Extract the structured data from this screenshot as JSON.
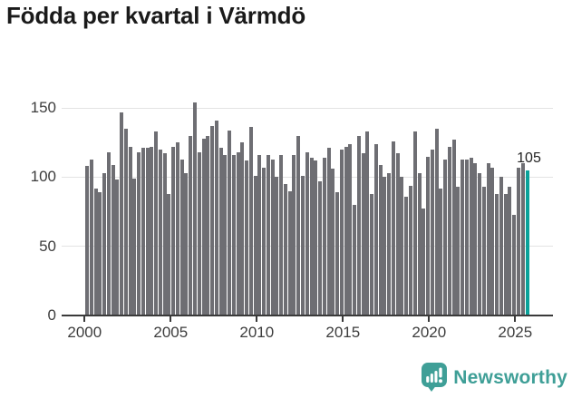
{
  "title": "Födda per kvartal i Värmdö",
  "footer": {
    "brand": "Newsworthy"
  },
  "colors": {
    "bar": "#6e6e73",
    "highlight": "#0aa29a",
    "grid": "#e3e3e3",
    "axis": "#3a3a3a",
    "tick_text": "#3d3d3d",
    "title_text": "#1a1a1a",
    "logo": "#3f9f97"
  },
  "chart_data": {
    "type": "bar",
    "title": "Födda per kvartal i Värmdö",
    "xlabel": "",
    "ylabel": "",
    "ylim": [
      0,
      150
    ],
    "grid": true,
    "y_ticks": [
      0,
      50,
      100,
      150
    ],
    "x_ticks": [
      2000,
      2005,
      2010,
      2015,
      2020,
      2025
    ],
    "highlight_index": 102,
    "highlight_label": "105",
    "categories": [
      "2000 Q1",
      "2000 Q2",
      "2000 Q3",
      "2000 Q4",
      "2001 Q1",
      "2001 Q2",
      "2001 Q3",
      "2001 Q4",
      "2002 Q1",
      "2002 Q2",
      "2002 Q3",
      "2002 Q4",
      "2003 Q1",
      "2003 Q2",
      "2003 Q3",
      "2003 Q4",
      "2004 Q1",
      "2004 Q2",
      "2004 Q3",
      "2004 Q4",
      "2005 Q1",
      "2005 Q2",
      "2005 Q3",
      "2005 Q4",
      "2006 Q1",
      "2006 Q2",
      "2006 Q3",
      "2006 Q4",
      "2007 Q1",
      "2007 Q2",
      "2007 Q3",
      "2007 Q4",
      "2008 Q1",
      "2008 Q2",
      "2008 Q3",
      "2008 Q4",
      "2009 Q1",
      "2009 Q2",
      "2009 Q3",
      "2009 Q4",
      "2010 Q1",
      "2010 Q2",
      "2010 Q3",
      "2010 Q4",
      "2011 Q1",
      "2011 Q2",
      "2011 Q3",
      "2011 Q4",
      "2012 Q1",
      "2012 Q2",
      "2012 Q3",
      "2012 Q4",
      "2013 Q1",
      "2013 Q2",
      "2013 Q3",
      "2013 Q4",
      "2014 Q1",
      "2014 Q2",
      "2014 Q3",
      "2014 Q4",
      "2015 Q1",
      "2015 Q2",
      "2015 Q3",
      "2015 Q4",
      "2016 Q1",
      "2016 Q2",
      "2016 Q3",
      "2016 Q4",
      "2017 Q1",
      "2017 Q2",
      "2017 Q3",
      "2017 Q4",
      "2018 Q1",
      "2018 Q2",
      "2018 Q3",
      "2018 Q4",
      "2019 Q1",
      "2019 Q2",
      "2019 Q3",
      "2019 Q4",
      "2020 Q1",
      "2020 Q2",
      "2020 Q3",
      "2020 Q4",
      "2021 Q1",
      "2021 Q2",
      "2021 Q3",
      "2021 Q4",
      "2022 Q1",
      "2022 Q2",
      "2022 Q3",
      "2022 Q4",
      "2023 Q1",
      "2023 Q2",
      "2023 Q3",
      "2023 Q4",
      "2024 Q1",
      "2024 Q2",
      "2024 Q3",
      "2024 Q4",
      "2025 Q1",
      "2025 Q2",
      "2025 Q3"
    ],
    "values": [
      108,
      113,
      92,
      89,
      103,
      118,
      109,
      98,
      147,
      135,
      122,
      99,
      118,
      121,
      121,
      122,
      133,
      120,
      117,
      88,
      122,
      125,
      113,
      103,
      130,
      154,
      118,
      128,
      130,
      137,
      141,
      121,
      116,
      134,
      116,
      118,
      125,
      112,
      136,
      101,
      116,
      107,
      116,
      113,
      100,
      116,
      95,
      90,
      116,
      130,
      101,
      118,
      114,
      112,
      97,
      114,
      121,
      106,
      89,
      120,
      122,
      124,
      80,
      130,
      117,
      133,
      88,
      124,
      109,
      100,
      103,
      126,
      117,
      100,
      86,
      94,
      133,
      103,
      77,
      115,
      120,
      135,
      92,
      113,
      122,
      127,
      93,
      113,
      113,
      114,
      110,
      103,
      93,
      110,
      107,
      88,
      100,
      88,
      93,
      73,
      107,
      110,
      105
    ]
  }
}
